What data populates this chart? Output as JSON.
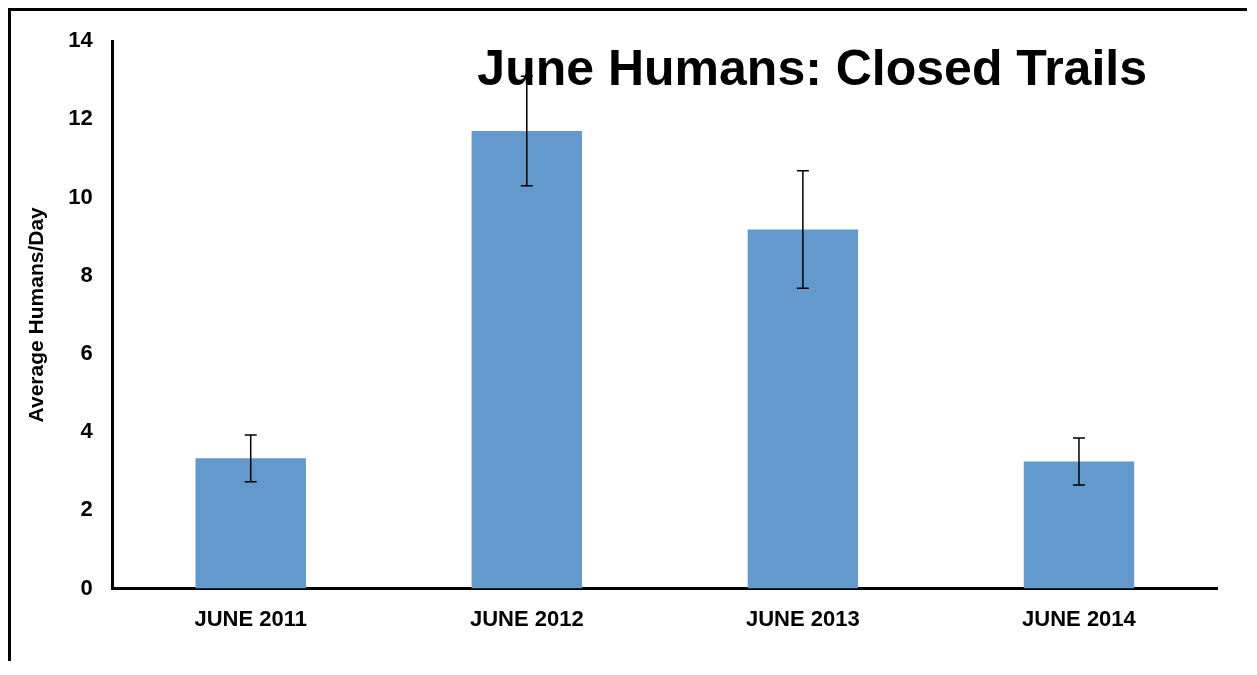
{
  "chart_data": {
    "type": "bar",
    "title": "June Humans: Closed Trails",
    "ylabel": "Average Humans/Day",
    "categories": [
      "JUNE 2011",
      "JUNE 2012",
      "JUNE 2013",
      "JUNE 2014"
    ],
    "values": [
      3.33,
      11.7,
      9.18,
      3.25
    ],
    "errors": [
      0.6,
      1.4,
      1.5,
      0.6
    ],
    "color": "#6399cc",
    "ylim": [
      0,
      14
    ],
    "yticks": [
      0,
      2,
      4,
      6,
      8,
      10,
      12,
      14
    ],
    "grid": false,
    "legend": false
  }
}
